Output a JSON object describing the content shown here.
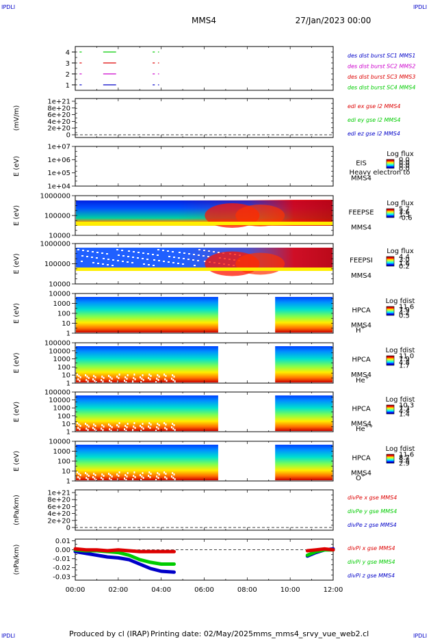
{
  "header": {
    "corner_left": "IPDLI",
    "corner_right": "IPDLI",
    "title": "MMS4",
    "date": "27/Jan/2023 00:00",
    "corner_bottom_left": "IPDLI",
    "corner_bottom_right": "IPDLI"
  },
  "footer": {
    "produced_by": "Produced by cl (IRAP)",
    "printing_date": "Printing date: 02/May/2025",
    "script": "mms_mms4_srvy_vue_web2.cl"
  },
  "colors": {
    "mms1": "#0000c8",
    "mms2": "#cc00cc",
    "mms3": "#dd0000",
    "mms4": "#00cc00",
    "x": "#dd0000",
    "y": "#00cc00",
    "z": "#0000c8"
  },
  "chart_data": {
    "type": "multi-panel time series",
    "x_axis": {
      "ticks": [
        "00:00",
        "02:00",
        "04:00",
        "06:00",
        "08:00",
        "10:00",
        "12:00"
      ],
      "range_hours": [
        0,
        12
      ]
    },
    "panels": [
      {
        "id": "burst",
        "yticks": [
          "1",
          "2",
          "3",
          "4"
        ],
        "legend": [
          {
            "text": "des dist burst SC1 MMS1",
            "color": "mms1"
          },
          {
            "text": "des dist burst SC2 MMS2",
            "color": "mms2"
          },
          {
            "text": "des dist burst SC3 MMS3",
            "color": "mms3"
          },
          {
            "text": "des dist burst SC4 MMS4",
            "color": "mms4"
          }
        ],
        "intervals_hours": [
          [
            0.2,
            0.3
          ],
          [
            1.3,
            1.9
          ],
          [
            3.6,
            3.7
          ],
          [
            3.85,
            3.9
          ]
        ]
      },
      {
        "id": "edi",
        "ylabel": "(mV/m)",
        "yticks": [
          "0",
          "2e+20",
          "4e+20",
          "6e+20",
          "8e+20",
          "1e+21"
        ],
        "legend": [
          {
            "text": "edi ex gse l2 MMS4",
            "color": "x"
          },
          {
            "text": "edi ey gse l2 MMS4",
            "color": "y"
          },
          {
            "text": "edi ez gse l2 MMS4",
            "color": "z"
          }
        ]
      },
      {
        "id": "eis",
        "ylabel": "E (eV)",
        "yticks": [
          "1e+04",
          "1e+05",
          "1e+06",
          "1e+07"
        ],
        "right_labels": [
          "EIS",
          "MMS4"
        ],
        "overlay": "Heavy electron to",
        "colorbar": {
          "title": "Log flux",
          "ticks": [
            "0.0",
            "0.0",
            "0.0",
            "0.0"
          ]
        }
      },
      {
        "id": "feepse",
        "ylabel": "E (eV)",
        "yticks": [
          "10000",
          "100000",
          "1000000"
        ],
        "right_labels": [
          "FEEPSE",
          "MMS4"
        ],
        "colorbar": {
          "title": "Log flux",
          "ticks": [
            "5.7",
            "3.6",
            "1.5",
            "-0.6"
          ]
        }
      },
      {
        "id": "feepsi",
        "ylabel": "E (eV)",
        "yticks": [
          "10000",
          "100000",
          "1000000"
        ],
        "right_labels": [
          "FEEPSI",
          "MMS4"
        ],
        "colorbar": {
          "title": "Log flux",
          "ticks": [
            "4.4",
            "3.0",
            "1.6",
            "0.2"
          ]
        }
      },
      {
        "id": "hpca_h",
        "ylabel": "E (eV)",
        "yticks": [
          "1",
          "10",
          "100",
          "1000",
          "10000"
        ],
        "right_labels": [
          "HPCA",
          "MMS4"
        ],
        "species": "H",
        "species_sup": "+",
        "colorbar": {
          "title": "Log fdist",
          "ticks": [
            "11.6",
            "7.9",
            "4.2",
            "0.5"
          ]
        },
        "data_gap_hours": [
          6.65,
          9.3
        ]
      },
      {
        "id": "hpca_he",
        "ylabel": "E (eV)",
        "yticks": [
          "1",
          "10",
          "100",
          "1000",
          "10000",
          "100000"
        ],
        "right_labels": [
          "HPCA",
          "MMS4"
        ],
        "species": "He",
        "species_sup": "+",
        "colorbar": {
          "title": "Log fdist",
          "ticks": [
            "11.0",
            "7.9",
            "4.8",
            "1.7"
          ]
        },
        "data_gap_hours": [
          6.65,
          9.3
        ]
      },
      {
        "id": "hpca_he2",
        "ylabel": "E (eV)",
        "yticks": [
          "1",
          "10",
          "100",
          "1000",
          "10000",
          "100000"
        ],
        "right_labels": [
          "HPCA",
          "MMS4"
        ],
        "species": "He",
        "species_sup": "++",
        "colorbar": {
          "title": "Log fdist",
          "ticks": [
            "10.3",
            "7.3",
            "4.4",
            "1.4"
          ]
        },
        "data_gap_hours": [
          6.65,
          9.3
        ]
      },
      {
        "id": "hpca_o",
        "ylabel": "E (eV)",
        "yticks": [
          "1",
          "10",
          "100",
          "1000",
          "10000"
        ],
        "right_labels": [
          "HPCA",
          "MMS4"
        ],
        "species": "O",
        "species_sup": "+",
        "colorbar": {
          "title": "Log fdist",
          "ticks": [
            "11.6",
            "8.7",
            "5.8",
            "2.9"
          ]
        },
        "data_gap_hours": [
          6.65,
          9.3
        ]
      },
      {
        "id": "divpe",
        "ylabel": "(nPa/km)",
        "yticks": [
          "0",
          "2e+20",
          "4e+20",
          "6e+20",
          "8e+20",
          "1e+21"
        ],
        "legend": [
          {
            "text": "divPe x gse MMS4",
            "color": "x"
          },
          {
            "text": "divPe y gse MMS4",
            "color": "y"
          },
          {
            "text": "divPe z gse MMS4",
            "color": "z"
          }
        ]
      },
      {
        "id": "divpi",
        "ylabel": "(nPa/km)",
        "yticks": [
          "-0.03",
          "-0.02",
          "-0.01",
          "0.00",
          "0.01"
        ],
        "ylim": [
          -0.034,
          0.012
        ],
        "legend": [
          {
            "text": "divPi x gse MMS4",
            "color": "x"
          },
          {
            "text": "divPi y gse MMS4",
            "color": "y"
          },
          {
            "text": "divPi z gse MMS4",
            "color": "z"
          }
        ],
        "series": [
          {
            "name": "divPi x gse MMS4",
            "color": "x",
            "x": [
              0,
              0.5,
              1,
              1.5,
              2,
              2.5,
              3,
              3.5,
              4,
              4.6,
              10.8,
              11.2,
              11.6,
              12
            ],
            "y": [
              0.001,
              0.0,
              0.0,
              -0.001,
              0.0,
              -0.001,
              -0.002,
              -0.002,
              -0.002,
              -0.002,
              -0.001,
              0.0,
              0.001,
              0.0
            ]
          },
          {
            "name": "divPi y gse MMS4",
            "color": "y",
            "x": [
              0,
              0.5,
              1,
              1.5,
              2,
              2.5,
              3,
              3.5,
              4,
              4.6,
              10.8,
              11.2,
              11.6,
              12
            ],
            "y": [
              0.0,
              -0.001,
              -0.001,
              -0.002,
              -0.003,
              -0.006,
              -0.011,
              -0.014,
              -0.016,
              -0.016,
              -0.006,
              -0.002,
              0.0,
              0.0
            ]
          },
          {
            "name": "divPi z gse MMS4",
            "color": "z",
            "x": [
              0,
              0.5,
              1,
              1.5,
              2,
              2.5,
              3,
              3.5,
              4,
              4.6,
              10.8,
              11.2,
              11.6,
              12
            ],
            "y": [
              -0.002,
              -0.004,
              -0.006,
              -0.008,
              -0.009,
              -0.011,
              -0.016,
              -0.021,
              -0.024,
              -0.025,
              -0.007,
              -0.003,
              0.0,
              0.001
            ]
          }
        ]
      }
    ]
  }
}
